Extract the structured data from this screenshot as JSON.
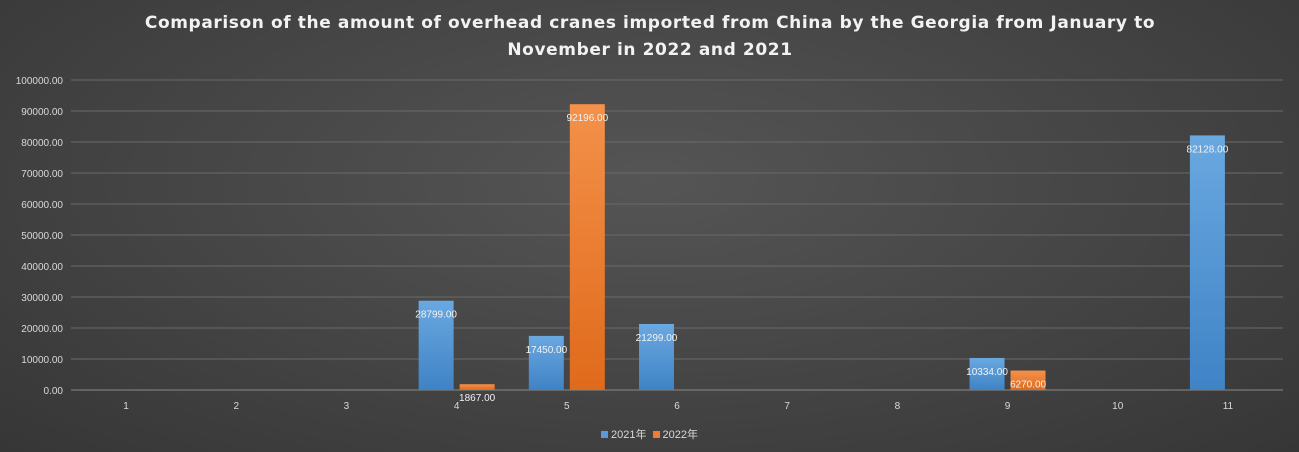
{
  "chart_data": {
    "type": "bar",
    "title": "Comparison of the amount of overhead cranes imported from China by the Georgia from January to November in 2022 and 2021",
    "categories": [
      "1",
      "2",
      "3",
      "4",
      "5",
      "6",
      "7",
      "8",
      "9",
      "10",
      "11"
    ],
    "series": [
      {
        "name": "2021年",
        "color": "#5b9bd5",
        "values": [
          0,
          0,
          0,
          28799,
          17450,
          21299,
          0,
          0,
          10334,
          0,
          82128
        ],
        "labels": [
          "",
          "",
          "",
          "28799.00",
          "17450.00",
          "21299.00",
          "",
          "",
          "10334.00",
          "",
          "82128.00"
        ]
      },
      {
        "name": "2022年",
        "color": "#ed7d31",
        "values": [
          0,
          0,
          0,
          1867,
          92196,
          0,
          0,
          0,
          6270,
          0,
          0
        ],
        "labels": [
          "",
          "",
          "",
          "1867.00",
          "92196.00",
          "",
          "",
          "",
          "6270.00",
          "",
          ""
        ]
      }
    ],
    "ylim": [
      0,
      100000
    ],
    "yticks": [
      "0.00",
      "10000.00",
      "20000.00",
      "30000.00",
      "40000.00",
      "50000.00",
      "60000.00",
      "70000.00",
      "80000.00",
      "90000.00",
      "100000.00"
    ],
    "grid": true,
    "legend": "bottom"
  }
}
